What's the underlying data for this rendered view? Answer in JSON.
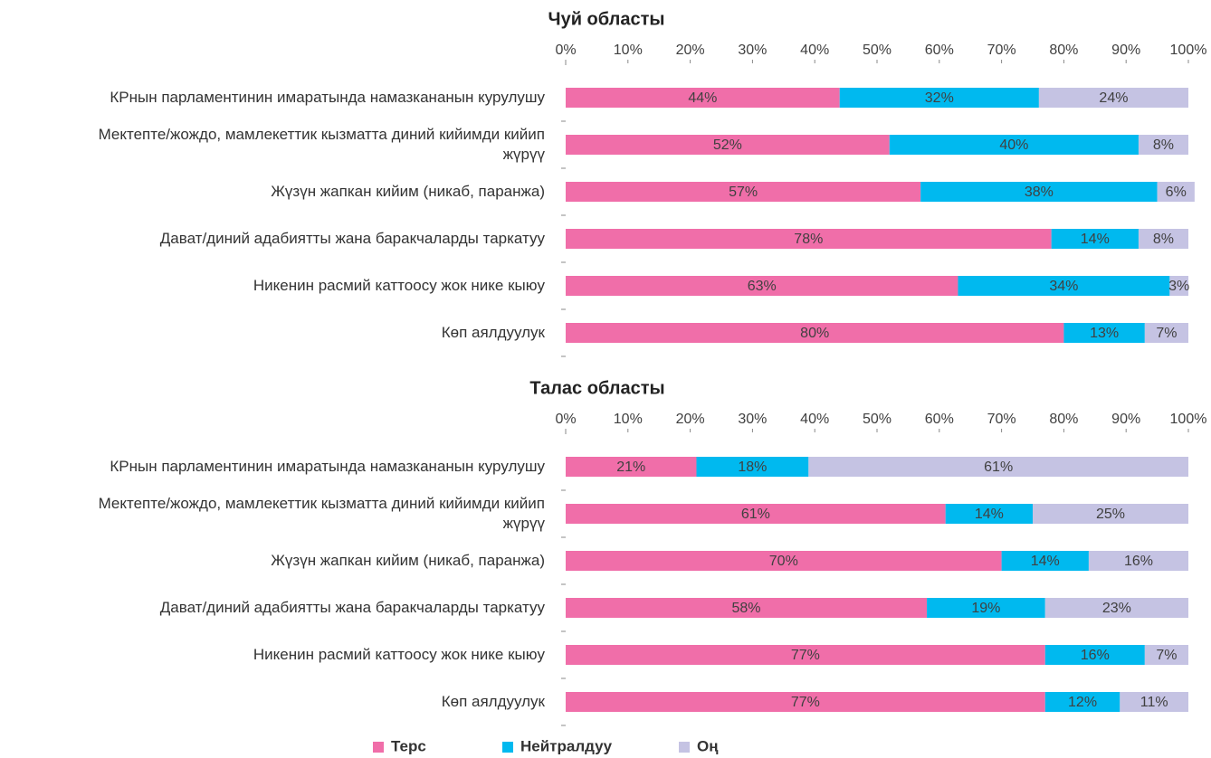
{
  "chart_data": [
    {
      "type": "stacked-bar",
      "title": "Чуй областы",
      "categories": [
        "КРнын парламентинин имаратында намазкананын курулушу",
        "Мектепте/жождо, мамлекеттик кызматта диний кийимди кийип жүрүү",
        "Жүзүн жапкан кийим (никаб, паранжа)",
        "Дават/диний адабиятты жана баракчаларды таркатуу",
        "Никенин расмий каттоосу жок нике кыюу",
        "Көп аялдуулук"
      ],
      "series": [
        {
          "name": "Терс",
          "color": "#f06ea9",
          "values": [
            44,
            52,
            57,
            78,
            63,
            80
          ],
          "value_labels": [
            "44%",
            "52%",
            "57%",
            "78%",
            "63%",
            "80%"
          ]
        },
        {
          "name": "Нейтралдуу",
          "color": "#00b9ef",
          "values": [
            32,
            40,
            38,
            14,
            34,
            13
          ],
          "value_labels": [
            "32%",
            "40%",
            "38%",
            "14%",
            "34%",
            "13%"
          ]
        },
        {
          "name": "Оң",
          "color": "#c5c3e3",
          "values": [
            24,
            8,
            6,
            8,
            3,
            7
          ],
          "value_labels": [
            "24%",
            "8%",
            "6%",
            "8%",
            "3%",
            "7%"
          ]
        }
      ],
      "xlim": [
        0,
        100
      ],
      "xticks": [
        {
          "value": 0,
          "label": "0%"
        },
        {
          "value": 10,
          "label": "10%"
        },
        {
          "value": 20,
          "label": "20%"
        },
        {
          "value": 30,
          "label": "30%"
        },
        {
          "value": 40,
          "label": "40%"
        },
        {
          "value": 50,
          "label": "50%"
        },
        {
          "value": 60,
          "label": "60%"
        },
        {
          "value": 70,
          "label": "70%"
        },
        {
          "value": 80,
          "label": "80%"
        },
        {
          "value": 90,
          "label": "90%"
        },
        {
          "value": 100,
          "label": "100%"
        }
      ]
    },
    {
      "type": "stacked-bar",
      "title": "Талас областы",
      "categories": [
        "КРнын парламентинин имаратында намазкананын курулушу",
        "Мектепте/жождо, мамлекеттик кызматта диний кийимди кийип жүрүү",
        "Жүзүн жапкан кийим (никаб, паранжа)",
        "Дават/диний адабиятты жана баракчаларды таркатуу",
        "Никенин расмий каттоосу жок нике кыюу",
        "Көп аялдуулук"
      ],
      "series": [
        {
          "color": "#f06ea9",
          "values": [
            21,
            61,
            70,
            58,
            77,
            77
          ],
          "value_labels": [
            "21%",
            "61%",
            "70%",
            "58%",
            "77%",
            "77%"
          ]
        },
        {
          "color": "#00b9ef",
          "values": [
            18,
            14,
            14,
            19,
            16,
            12
          ],
          "value_labels": [
            "18%",
            "14%",
            "14%",
            "19%",
            "16%",
            "12%"
          ]
        },
        {
          "color": "#c5c3e3",
          "values": [
            61,
            25,
            16,
            23,
            7,
            11
          ],
          "value_labels": [
            "61%",
            "25%",
            "16%",
            "23%",
            "7%",
            "11%"
          ]
        }
      ],
      "xlim": [
        0,
        100
      ],
      "xticks": [
        {
          "value": 0,
          "label": "0%"
        },
        {
          "value": 10,
          "label": "10%"
        },
        {
          "value": 20,
          "label": "20%"
        },
        {
          "value": 30,
          "label": "30%"
        },
        {
          "value": 40,
          "label": "40%"
        },
        {
          "value": 50,
          "label": "50%"
        },
        {
          "value": 60,
          "label": "60%"
        },
        {
          "value": 70,
          "label": "70%"
        },
        {
          "value": 80,
          "label": "80%"
        },
        {
          "value": 90,
          "label": "90%"
        },
        {
          "value": 100,
          "label": "100%"
        }
      ]
    }
  ]
}
